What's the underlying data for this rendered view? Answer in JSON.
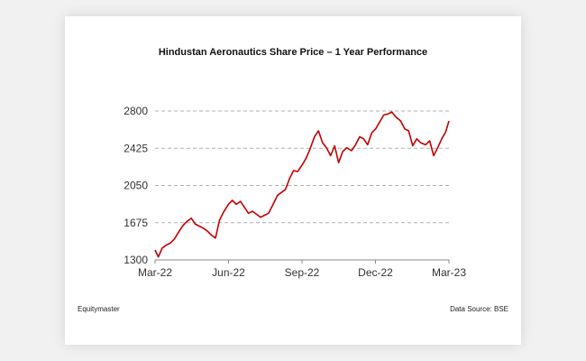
{
  "chart_data": {
    "type": "line",
    "title": "Hindustan Aeronautics Share Price – 1 Year Performance",
    "xlabel": "",
    "ylabel": "",
    "ylim": [
      1300,
      2800
    ],
    "yticks": [
      1300,
      1675,
      2050,
      2425,
      2800
    ],
    "ytick_labels": [
      "1300",
      "1675",
      "2050",
      "2425",
      "2800"
    ],
    "xticks": [
      "Mar-22",
      "Jun-22",
      "Sep-22",
      "Dec-22",
      "Mar-23"
    ],
    "xlim": [
      "2022-03-01",
      "2023-03-01"
    ],
    "grid": "horizontal dashed",
    "legend": "none",
    "line_color": "#c00000",
    "grid_color": "#b0b0b0",
    "series": [
      {
        "x": [
          "2022-03-01",
          "2022-03-05",
          "2022-03-10",
          "2022-03-15",
          "2022-03-20",
          "2022-03-25",
          "2022-03-31",
          "2022-04-05",
          "2022-04-10",
          "2022-04-15",
          "2022-04-20",
          "2022-04-25",
          "2022-04-30",
          "2022-05-05",
          "2022-05-10",
          "2022-05-15",
          "2022-05-20",
          "2022-05-25",
          "2022-05-31",
          "2022-06-05",
          "2022-06-10",
          "2022-06-15",
          "2022-06-20",
          "2022-06-25",
          "2022-06-30",
          "2022-07-05",
          "2022-07-10",
          "2022-07-15",
          "2022-07-20",
          "2022-07-25",
          "2022-07-31",
          "2022-08-05",
          "2022-08-10",
          "2022-08-15",
          "2022-08-20",
          "2022-08-25",
          "2022-08-31",
          "2022-09-05",
          "2022-09-10",
          "2022-09-15",
          "2022-09-20",
          "2022-09-25",
          "2022-09-30",
          "2022-10-05",
          "2022-10-10",
          "2022-10-15",
          "2022-10-20",
          "2022-10-25",
          "2022-10-31",
          "2022-11-05",
          "2022-11-10",
          "2022-11-15",
          "2022-11-20",
          "2022-11-25",
          "2022-11-30",
          "2022-12-05",
          "2022-12-10",
          "2022-12-15",
          "2022-12-20",
          "2022-12-25",
          "2022-12-31",
          "2023-01-05",
          "2023-01-10",
          "2023-01-15",
          "2023-01-20",
          "2023-01-25",
          "2023-01-31",
          "2023-02-05",
          "2023-02-10",
          "2023-02-15",
          "2023-02-20",
          "2023-02-25",
          "2023-03-01"
        ],
        "values": [
          1400,
          1330,
          1420,
          1450,
          1470,
          1510,
          1590,
          1650,
          1690,
          1720,
          1660,
          1640,
          1620,
          1590,
          1550,
          1520,
          1700,
          1780,
          1860,
          1900,
          1860,
          1890,
          1830,
          1770,
          1790,
          1760,
          1730,
          1750,
          1770,
          1850,
          1950,
          1980,
          2010,
          2120,
          2200,
          2190,
          2260,
          2330,
          2430,
          2540,
          2600,
          2480,
          2430,
          2350,
          2450,
          2280,
          2390,
          2430,
          2400,
          2460,
          2540,
          2520,
          2460,
          2580,
          2620,
          2690,
          2760,
          2770,
          2790,
          2740,
          2700,
          2620,
          2600,
          2450,
          2520,
          2480,
          2460,
          2500,
          2350,
          2430,
          2520,
          2590,
          2700
        ]
      }
    ]
  },
  "footer": {
    "source_left": "Equitymaster",
    "source_right": "Data Source: BSE"
  }
}
